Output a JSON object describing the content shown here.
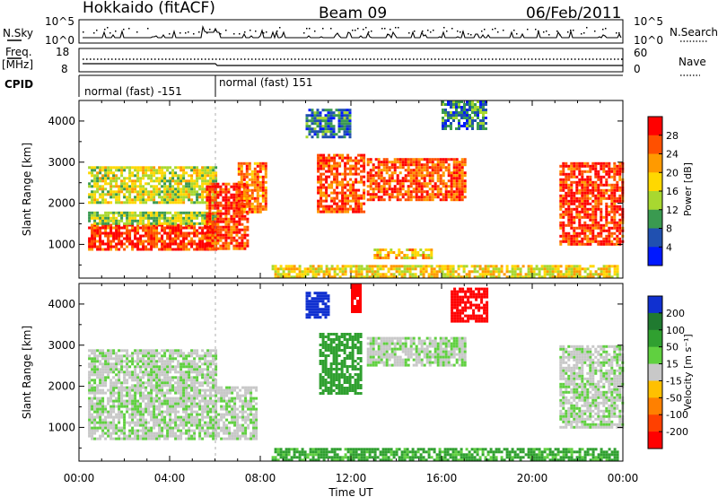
{
  "header": {
    "radar": "Hokkaido (fitACF)",
    "beam": "Beam 09",
    "date": "06/Feb/2011"
  },
  "panels": {
    "nsky": {
      "left_label": "N.Sky",
      "left_ticks": [
        "10^5",
        "10^0"
      ],
      "right_ticks": [
        "10^5",
        "10^0"
      ],
      "right_label": "N.Search"
    },
    "freq": {
      "left_label_1": "Freq.",
      "left_label_2": "[MHz]",
      "left_ticks": [
        "18",
        "8"
      ],
      "right_ticks": [
        "60",
        "0"
      ],
      "right_label": "Nave"
    },
    "cpid": {
      "label": "CPID",
      "segments": [
        "normal (fast) -151",
        "normal (fast) 151"
      ]
    }
  },
  "colorbars": {
    "power": {
      "label": "Power [dB]",
      "ticks": [
        "28",
        "24",
        "20",
        "16",
        "12",
        "8",
        "4"
      ],
      "colors": [
        "#ff0000",
        "#ff5000",
        "#ff9a00",
        "#ffd800",
        "#a8d830",
        "#3a9a50",
        "#2050b0",
        "#0018ff"
      ]
    },
    "velocity": {
      "label": "Velocity [m s⁻¹]",
      "ticks": [
        "200",
        "100",
        "50",
        "15",
        "-15",
        "-50",
        "-100",
        "-200"
      ],
      "colors": [
        "#1030d0",
        "#207a30",
        "#30a030",
        "#60d040",
        "#c8c8c8",
        "#ffc000",
        "#ff8000",
        "#ff4000",
        "#ff0000"
      ]
    }
  },
  "axes": {
    "ylabel": "Slant Range [km]",
    "xlabel": "Time UT",
    "xticks": [
      "00:00",
      "04:00",
      "08:00",
      "12:00",
      "16:00",
      "20:00",
      "00:00"
    ],
    "yticks": [
      "1000",
      "2000",
      "3000",
      "4000"
    ]
  },
  "chart_data": [
    {
      "type": "heatmap",
      "panel": "power",
      "x_range_hours": [
        0,
        24
      ],
      "y_range_km": [
        180,
        4500
      ],
      "colorbar_range_dB": [
        0,
        32
      ],
      "ylabel": "Slant Range [km]",
      "regions": [
        {
          "t": [
            0.4,
            6.0
          ],
          "r": [
            900,
            1500
          ],
          "value": 28
        },
        {
          "t": [
            0.4,
            6.0
          ],
          "r": [
            1500,
            1800
          ],
          "value": 14
        },
        {
          "t": [
            0.4,
            6.0
          ],
          "r": [
            2000,
            2900
          ],
          "value": 16
        },
        {
          "t": [
            5.6,
            7.4
          ],
          "r": [
            900,
            2500
          ],
          "value": 28
        },
        {
          "t": [
            7.0,
            8.3
          ],
          "r": [
            1800,
            3000
          ],
          "value": 24
        },
        {
          "t": [
            10.5,
            12.6
          ],
          "r": [
            1800,
            3200
          ],
          "value": 26
        },
        {
          "t": [
            12.7,
            17.0
          ],
          "r": [
            2100,
            3100
          ],
          "value": 26
        },
        {
          "t": [
            16.0,
            18.0
          ],
          "r": [
            3800,
            4500
          ],
          "value": 8
        },
        {
          "t": [
            10.0,
            12.0
          ],
          "r": [
            3600,
            4300
          ],
          "value": 8
        },
        {
          "t": [
            13.0,
            15.5
          ],
          "r": [
            650,
            900
          ],
          "value": 20
        },
        {
          "t": [
            8.5,
            23.8
          ],
          "r": [
            200,
            500
          ],
          "value": 18
        },
        {
          "t": [
            21.2,
            24.0
          ],
          "r": [
            1000,
            3000
          ],
          "value": 28
        }
      ]
    },
    {
      "type": "heatmap",
      "panel": "velocity",
      "x_range_hours": [
        0,
        24
      ],
      "y_range_km": [
        180,
        4500
      ],
      "colorbar_range_ms": [
        -250,
        250
      ],
      "ylabel": "Slant Range [km]",
      "regions": [
        {
          "t": [
            0.4,
            7.8
          ],
          "r": [
            700,
            2000
          ],
          "value": 0
        },
        {
          "t": [
            0.4,
            6.0
          ],
          "r": [
            2000,
            2900
          ],
          "value": 0
        },
        {
          "t": [
            10.0,
            11.0
          ],
          "r": [
            3700,
            4300
          ],
          "value": 200
        },
        {
          "t": [
            12.0,
            12.4
          ],
          "r": [
            3800,
            4500
          ],
          "value": -200
        },
        {
          "t": [
            16.4,
            18.0
          ],
          "r": [
            3600,
            4400
          ],
          "value": -200
        },
        {
          "t": [
            10.6,
            12.4
          ],
          "r": [
            1800,
            3300
          ],
          "value": 60
        },
        {
          "t": [
            12.7,
            17.0
          ],
          "r": [
            2500,
            3200
          ],
          "value": 0
        },
        {
          "t": [
            8.5,
            23.8
          ],
          "r": [
            200,
            500
          ],
          "value": 40
        },
        {
          "t": [
            21.2,
            24.0
          ],
          "r": [
            1000,
            3000
          ],
          "value": 0
        }
      ]
    }
  ]
}
